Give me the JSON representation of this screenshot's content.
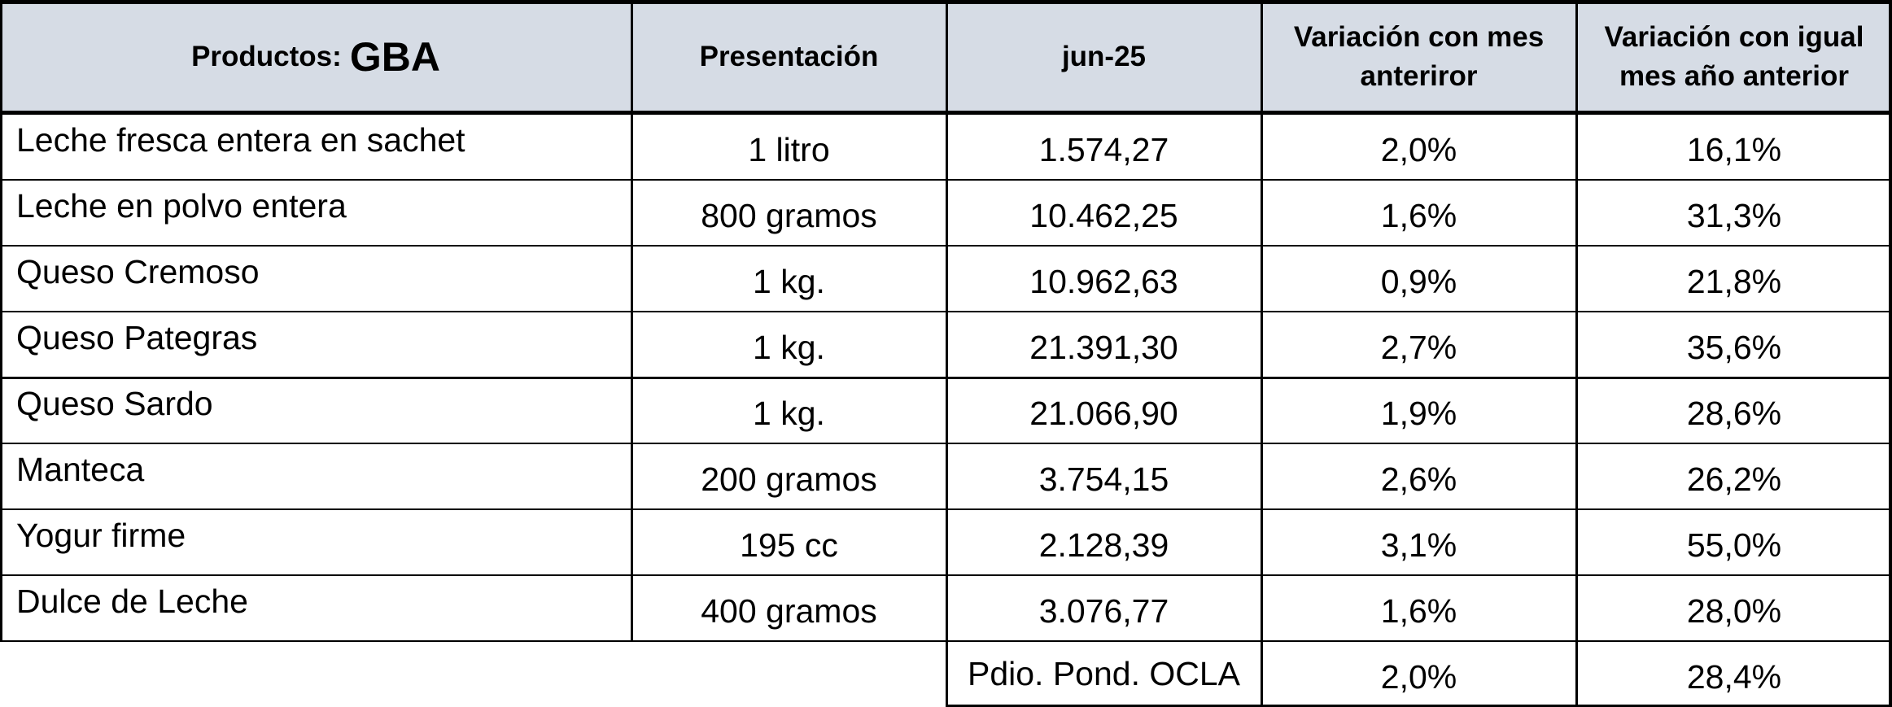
{
  "table": {
    "headers": {
      "productos_label": "Productos:",
      "region": "GBA",
      "presentacion": "Presentación",
      "period": "jun-25",
      "var_mes": "Variación con mes anteriror",
      "var_anio": "Variación con igual mes año anterior"
    },
    "rows": [
      {
        "product": "Leche fresca entera en sachet",
        "presentation": "1 litro",
        "price": "1.574,27",
        "var_mes": "2,0%",
        "var_anio": "16,1%"
      },
      {
        "product": "Leche en polvo entera",
        "presentation": "800 gramos",
        "price": "10.462,25",
        "var_mes": "1,6%",
        "var_anio": "31,3%"
      },
      {
        "product": "Queso Cremoso",
        "presentation": "1 kg.",
        "price": "10.962,63",
        "var_mes": "0,9%",
        "var_anio": "21,8%"
      },
      {
        "product": "Queso Pategras",
        "presentation": "1 kg.",
        "price": "21.391,30",
        "var_mes": "2,7%",
        "var_anio": "35,6%"
      },
      {
        "product": "Queso Sardo",
        "presentation": "1 kg.",
        "price": "21.066,90",
        "var_mes": "1,9%",
        "var_anio": "28,6%"
      },
      {
        "product": "Manteca",
        "presentation": "200 gramos",
        "price": "3.754,15",
        "var_mes": "2,6%",
        "var_anio": "26,2%"
      },
      {
        "product": "Yogur firme",
        "presentation": "195 cc",
        "price": "2.128,39",
        "var_mes": "3,1%",
        "var_anio": "55,0%"
      },
      {
        "product": "Dulce de Leche",
        "presentation": "400 gramos",
        "price": "3.076,77",
        "var_mes": "1,6%",
        "var_anio": "28,0%"
      }
    ],
    "summary": {
      "label": "Pdio. Pond. OCLA",
      "var_mes": "2,0%",
      "var_anio": "28,4%"
    }
  }
}
